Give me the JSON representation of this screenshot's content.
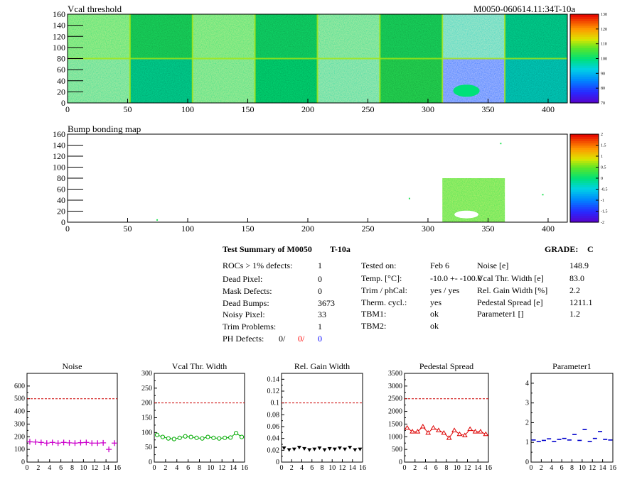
{
  "colors": {
    "frame": "#000000",
    "noise_marker": "#cc00cc",
    "vcal_marker": "#00aa00",
    "gain_marker": "#000000",
    "pedestal_marker": "#dd0000",
    "param_marker": "#0000cc",
    "reference_line": "#cc0000",
    "defect_red": "#ff0000",
    "defect_blue": "#0000ff"
  },
  "top_header_right": "M0050-060614.11:34T-10a",
  "chart_data": [
    {
      "id": "vcal-threshold-map",
      "type": "heatmap",
      "title": "Vcal threshold",
      "x_ticks": [
        "0",
        "50",
        "100",
        "150",
        "200",
        "250",
        "300",
        "350",
        "400"
      ],
      "y_ticks": [
        "0",
        "20",
        "40",
        "60",
        "80",
        "100",
        "120",
        "140",
        "160"
      ],
      "xlim": [
        0,
        416
      ],
      "ylim": [
        0,
        160
      ],
      "colorbar_ticks": [
        "70",
        "80",
        "90",
        "100",
        "110",
        "120",
        "130"
      ],
      "colorbar_range": [
        70,
        130
      ],
      "roc_means": {
        "top_row": [
          100,
          102,
          100,
          101,
          98,
          102,
          95,
          98
        ],
        "bottom_row": [
          98,
          98,
          99,
          100,
          97,
          103,
          84,
          95
        ]
      },
      "hole_roc": {
        "row": "bottom",
        "col": 6,
        "value": 100
      }
    },
    {
      "id": "bump-bonding-map",
      "type": "heatmap",
      "title": "Bump bonding map",
      "x_ticks": [
        "0",
        "50",
        "100",
        "150",
        "200",
        "250",
        "300",
        "350",
        "400"
      ],
      "y_ticks": [
        "0",
        "20",
        "40",
        "60",
        "80",
        "100",
        "120",
        "140",
        "160"
      ],
      "xlim": [
        0,
        416
      ],
      "ylim": [
        0,
        160
      ],
      "colorbar_ticks": [
        "-2",
        "-1.5",
        "-1",
        "-0.5",
        "0",
        "0.5",
        "1",
        "1.5",
        "2"
      ],
      "colorbar_range": [
        -2,
        2
      ],
      "bad_roc": {
        "row": "bottom",
        "col": 6
      },
      "isolated_hits": [
        [
          74,
          4
        ],
        [
          284,
          43
        ],
        [
          360,
          143
        ],
        [
          395,
          50
        ]
      ]
    },
    {
      "id": "noise-summary",
      "type": "scatter",
      "title": "Noise",
      "x": [
        0,
        1,
        2,
        3,
        4,
        5,
        6,
        7,
        8,
        9,
        10,
        11,
        12,
        13,
        14,
        15
      ],
      "values": [
        160,
        158,
        155,
        150,
        155,
        150,
        155,
        152,
        150,
        153,
        155,
        150,
        150,
        152,
        100,
        150
      ],
      "reference": 500,
      "xlim": [
        0,
        16
      ],
      "ylim": [
        0,
        700
      ],
      "x_ticks": [
        "0",
        "2",
        "4",
        "6",
        "8",
        "10",
        "12",
        "14",
        "16"
      ],
      "y_ticks": [
        "0",
        "100",
        "200",
        "300",
        "400",
        "500",
        "600"
      ],
      "marker": "cross"
    },
    {
      "id": "vcal-width-summary",
      "type": "line",
      "title": "Vcal Thr. Width",
      "x": [
        0,
        1,
        2,
        3,
        4,
        5,
        6,
        7,
        8,
        9,
        10,
        11,
        12,
        13,
        14,
        15
      ],
      "values": [
        92,
        85,
        80,
        78,
        82,
        87,
        85,
        82,
        80,
        85,
        82,
        80,
        82,
        83,
        98,
        85
      ],
      "reference": 200,
      "xlim": [
        0,
        16
      ],
      "ylim": [
        0,
        300
      ],
      "x_ticks": [
        "0",
        "2",
        "4",
        "6",
        "8",
        "10",
        "12",
        "14",
        "16"
      ],
      "y_ticks": [
        "0",
        "50",
        "100",
        "150",
        "200",
        "250",
        "300"
      ],
      "marker": "circle"
    },
    {
      "id": "gain-width-summary",
      "type": "scatter",
      "title": "Rel. Gain Width",
      "x": [
        0,
        1,
        2,
        3,
        4,
        5,
        6,
        7,
        8,
        9,
        10,
        11,
        12,
        13,
        14,
        15
      ],
      "values": [
        0.024,
        0.021,
        0.022,
        0.025,
        0.023,
        0.021,
        0.022,
        0.024,
        0.021,
        0.023,
        0.022,
        0.024,
        0.022,
        0.025,
        0.021,
        0.022
      ],
      "reference": 0.1,
      "xlim": [
        0,
        16
      ],
      "ylim": [
        0,
        0.15
      ],
      "x_ticks": [
        "0",
        "2",
        "4",
        "6",
        "8",
        "10",
        "12",
        "14",
        "16"
      ],
      "y_ticks": [
        "0",
        "0.02",
        "0.04",
        "0.06",
        "0.08",
        "0.1",
        "0.12",
        "0.14"
      ],
      "marker": "triangle"
    },
    {
      "id": "pedestal-summary",
      "type": "line",
      "title": "Pedestal Spread",
      "x": [
        0,
        1,
        2,
        3,
        4,
        5,
        6,
        7,
        8,
        9,
        10,
        11,
        12,
        13,
        14,
        15
      ],
      "values": [
        1350,
        1200,
        1200,
        1400,
        1150,
        1350,
        1250,
        1150,
        950,
        1250,
        1100,
        1050,
        1300,
        1200,
        1200,
        1100
      ],
      "reference": 2500,
      "xlim": [
        0,
        16
      ],
      "ylim": [
        0,
        3500
      ],
      "x_ticks": [
        "0",
        "2",
        "4",
        "6",
        "8",
        "10",
        "12",
        "14",
        "16"
      ],
      "y_ticks": [
        "0",
        "500",
        "1000",
        "1500",
        "2000",
        "2500",
        "3000",
        "3500"
      ],
      "marker": "triangle-open"
    },
    {
      "id": "parameter1-summary",
      "type": "scatter",
      "title": "Parameter1",
      "x": [
        0,
        1,
        2,
        3,
        4,
        5,
        6,
        7,
        8,
        9,
        10,
        11,
        12,
        13,
        14,
        15
      ],
      "values": [
        1.12,
        1.05,
        1.1,
        1.18,
        1.05,
        1.15,
        1.2,
        1.12,
        1.4,
        1.1,
        1.65,
        1.05,
        1.2,
        1.55,
        1.15,
        1.12
      ],
      "reference": null,
      "xlim": [
        0,
        16
      ],
      "ylim": [
        0,
        4.5
      ],
      "x_ticks": [
        "0",
        "2",
        "4",
        "6",
        "8",
        "10",
        "12",
        "14",
        "16"
      ],
      "y_ticks": [
        "0",
        "1",
        "2",
        "3",
        "4"
      ],
      "marker": "hbar"
    }
  ],
  "summary": {
    "title": "Test Summary of M0050",
    "temp_tag": "T-10a",
    "grade_label": "GRADE:",
    "grade_value": "C",
    "col1": [
      {
        "label": "ROCs > 1% defects:",
        "value": "1"
      },
      {
        "label": "Dead Pixel:",
        "value": "0"
      },
      {
        "label": "Mask Defects:",
        "value": "0"
      },
      {
        "label": "Dead Bumps:",
        "value": "3673"
      },
      {
        "label": "Noisy Pixel:",
        "value": "33"
      },
      {
        "label": "Trim Problems:",
        "value": "1"
      }
    ],
    "ph_defects": {
      "label": "PH Defects:",
      "v1": "0/",
      "v2": "0/",
      "v3": "0"
    },
    "col2": [
      {
        "label": "Tested on:",
        "value": "Feb 6"
      },
      {
        "label": "Temp. [°C]:",
        "value": "-10.0 +- -100.0"
      },
      {
        "label": "Trim / phCal:",
        "value": "yes / yes"
      },
      {
        "label": "Therm. cycl.:",
        "value": "yes"
      },
      {
        "label": "TBM1:",
        "value": "ok"
      },
      {
        "label": "TBM2:",
        "value": "ok"
      }
    ],
    "col3": [
      {
        "label": "Noise [e]",
        "value": "148.9"
      },
      {
        "label": "Vcal Thr. Width [e]",
        "value": "83.0"
      },
      {
        "label": "Rel. Gain Width [%]",
        "value": "2.2"
      },
      {
        "label": "Pedestal Spread [e]",
        "value": "1211.1"
      },
      {
        "label": "Parameter1 []",
        "value": "1.2"
      }
    ]
  }
}
